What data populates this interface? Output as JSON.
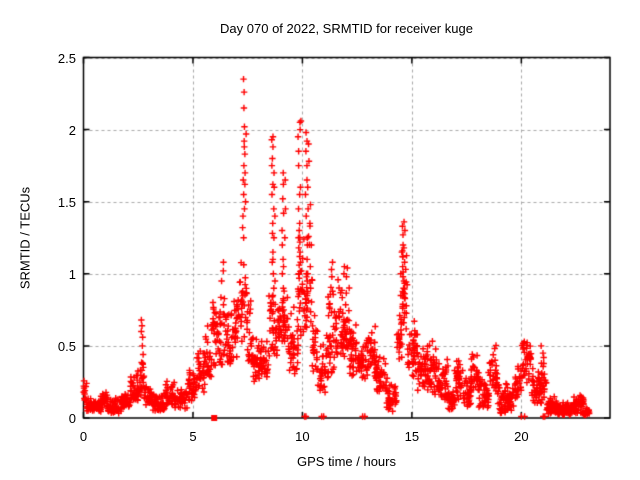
{
  "title": "Day 070 of 2022, SRMTID for receiver kuge",
  "axes": {
    "xlabel": "GPS time / hours",
    "ylabel": "SRMTID / TECUs",
    "xticks": [
      {
        "label": "0",
        "value": 0
      },
      {
        "label": "5",
        "value": 5
      },
      {
        "label": "10",
        "value": 10
      },
      {
        "label": "15",
        "value": 15
      },
      {
        "label": "20",
        "value": 20
      }
    ],
    "yticks": [
      {
        "label": "0",
        "value": 0
      },
      {
        "label": "0.5",
        "value": 0.5
      },
      {
        "label": "1",
        "value": 1
      },
      {
        "label": "1.5",
        "value": 1.5
      },
      {
        "label": "2",
        "value": 2
      },
      {
        "label": "2.5",
        "value": 2.5
      }
    ]
  },
  "colors": {
    "marker": "#ff0000",
    "grid": "#a8a8a8",
    "border": "#000000",
    "background": "#ffffff"
  },
  "chart_data": {
    "type": "scatter",
    "title": "Day 070 of 2022, SRMTID for receiver kuge",
    "xlabel": "GPS time / hours",
    "ylabel": "SRMTID / TECUs",
    "xlim": [
      0,
      24.05
    ],
    "ylim": [
      0,
      2.5
    ],
    "grid": true,
    "marker": "plus",
    "marker_color": "#ff0000",
    "description": "Dense ~2000-point red '+' time series of SRMTID vs GPS time. envelope_segments rows are [hour_start, hour_end, value_min, value_max, n_points]; spike_columns are narrow vertical columns of individual readings; zero markers sit on the x-axis.",
    "envelope_segments": [
      [
        0.0,
        0.15,
        0.08,
        0.3,
        14
      ],
      [
        0.15,
        0.8,
        0.04,
        0.16,
        55
      ],
      [
        0.8,
        1.1,
        0.06,
        0.22,
        26
      ],
      [
        1.1,
        1.75,
        0.03,
        0.14,
        55
      ],
      [
        1.75,
        2.15,
        0.06,
        0.2,
        34
      ],
      [
        2.15,
        2.45,
        0.1,
        0.3,
        26
      ],
      [
        2.45,
        2.62,
        0.12,
        0.38,
        15
      ],
      [
        2.62,
        2.78,
        0.14,
        0.45,
        13
      ],
      [
        2.78,
        3.15,
        0.08,
        0.26,
        30
      ],
      [
        3.15,
        3.75,
        0.04,
        0.18,
        50
      ],
      [
        3.75,
        4.15,
        0.08,
        0.32,
        34
      ],
      [
        4.15,
        4.75,
        0.06,
        0.22,
        50
      ],
      [
        4.75,
        5.15,
        0.12,
        0.38,
        34
      ],
      [
        5.15,
        5.55,
        0.18,
        0.5,
        34
      ],
      [
        5.55,
        5.85,
        0.25,
        0.65,
        26
      ],
      [
        5.85,
        6.1,
        0.3,
        0.95,
        24
      ],
      [
        6.1,
        6.45,
        0.35,
        0.9,
        30
      ],
      [
        6.45,
        6.85,
        0.35,
        0.78,
        34
      ],
      [
        6.85,
        7.05,
        0.4,
        1.0,
        18
      ],
      [
        7.05,
        7.25,
        0.5,
        1.2,
        16
      ],
      [
        7.25,
        7.45,
        0.55,
        1.3,
        14
      ],
      [
        7.45,
        7.75,
        0.3,
        0.85,
        26
      ],
      [
        7.75,
        8.45,
        0.25,
        0.62,
        60
      ],
      [
        8.45,
        8.85,
        0.4,
        0.9,
        32
      ],
      [
        8.85,
        9.35,
        0.45,
        0.95,
        40
      ],
      [
        9.35,
        9.8,
        0.3,
        0.85,
        38
      ],
      [
        9.8,
        10.45,
        0.55,
        1.35,
        52
      ],
      [
        10.45,
        10.7,
        0.25,
        0.8,
        22
      ],
      [
        10.7,
        11.05,
        0.15,
        0.55,
        30
      ],
      [
        11.05,
        11.5,
        0.25,
        0.95,
        40
      ],
      [
        11.5,
        12.15,
        0.35,
        1.0,
        60
      ],
      [
        12.15,
        12.55,
        0.25,
        0.75,
        36
      ],
      [
        12.55,
        13.0,
        0.25,
        0.6,
        40
      ],
      [
        13.0,
        13.35,
        0.28,
        0.7,
        30
      ],
      [
        13.35,
        13.8,
        0.15,
        0.45,
        40
      ],
      [
        13.8,
        14.3,
        0.04,
        0.28,
        44
      ],
      [
        14.3,
        14.55,
        0.35,
        1.0,
        22
      ],
      [
        14.55,
        14.8,
        0.55,
        1.36,
        24
      ],
      [
        14.8,
        15.25,
        0.28,
        0.7,
        40
      ],
      [
        15.25,
        15.75,
        0.18,
        0.55,
        44
      ],
      [
        15.75,
        16.15,
        0.15,
        0.55,
        36
      ],
      [
        16.15,
        16.65,
        0.1,
        0.42,
        44
      ],
      [
        16.65,
        16.95,
        0.05,
        0.2,
        26
      ],
      [
        16.95,
        17.35,
        0.12,
        0.45,
        36
      ],
      [
        17.35,
        17.7,
        0.07,
        0.3,
        30
      ],
      [
        17.7,
        18.05,
        0.15,
        0.5,
        32
      ],
      [
        18.05,
        18.5,
        0.06,
        0.28,
        40
      ],
      [
        18.5,
        18.9,
        0.12,
        0.58,
        36
      ],
      [
        18.9,
        19.4,
        0.02,
        0.28,
        44
      ],
      [
        19.4,
        19.7,
        0.04,
        0.24,
        26
      ],
      [
        19.7,
        20.0,
        0.08,
        0.38,
        26
      ],
      [
        20.0,
        20.45,
        0.22,
        0.62,
        40
      ],
      [
        20.45,
        20.85,
        0.08,
        0.4,
        34
      ],
      [
        20.85,
        21.15,
        0.05,
        0.45,
        26
      ],
      [
        21.15,
        21.65,
        0.02,
        0.16,
        44
      ],
      [
        21.65,
        22.25,
        0.02,
        0.12,
        55
      ],
      [
        22.25,
        22.85,
        0.03,
        0.17,
        55
      ],
      [
        22.85,
        23.1,
        0.02,
        0.09,
        24
      ]
    ],
    "spike_columns": [
      {
        "h": 2.68,
        "values": [
          0.33,
          0.38,
          0.44,
          0.5,
          0.56,
          0.6,
          0.64,
          0.68
        ]
      },
      {
        "h": 6.35,
        "values": [
          0.95,
          1.02,
          1.08
        ]
      },
      {
        "h": 7.28,
        "values": [
          1.25,
          1.32,
          1.4
        ]
      },
      {
        "h": 7.33,
        "values": [
          1.45,
          1.55,
          1.65,
          1.75,
          1.83,
          1.92,
          2.02,
          2.15,
          2.26,
          2.35
        ]
      },
      {
        "h": 7.38,
        "values": [
          1.5,
          1.62,
          1.7,
          1.88,
          1.97
        ]
      },
      {
        "h": 8.65,
        "values": [
          0.8,
          0.9,
          1.0,
          1.08,
          1.15,
          1.28,
          1.35,
          1.45,
          1.55,
          1.62,
          1.75,
          1.8,
          1.88,
          1.93
        ]
      },
      {
        "h": 8.7,
        "values": [
          0.85,
          0.95,
          1.1,
          1.25,
          1.4,
          1.6,
          1.7,
          1.95
        ]
      },
      {
        "h": 9.12,
        "values": [
          0.7,
          0.8,
          0.9,
          1.0,
          1.1,
          1.2,
          1.3,
          1.42,
          1.52,
          1.62,
          1.7
        ]
      },
      {
        "h": 9.18,
        "values": [
          0.75,
          0.88,
          1.05,
          1.25,
          1.45,
          1.65
        ]
      },
      {
        "h": 9.85,
        "values": [
          1.0,
          1.06,
          1.12,
          1.18,
          1.25,
          1.35,
          1.45,
          1.55,
          1.75,
          1.85,
          1.95,
          2.05
        ]
      },
      {
        "h": 9.9,
        "values": [
          1.02,
          1.08,
          1.15,
          1.22,
          1.3,
          1.6,
          2.0,
          2.06
        ]
      },
      {
        "h": 10.18,
        "values": [
          0.8,
          0.95,
          1.1,
          1.25,
          1.4,
          1.55,
          1.65,
          1.75,
          1.85,
          1.92,
          1.98
        ]
      },
      {
        "h": 10.25,
        "values": [
          0.85,
          1.0,
          1.2,
          1.45,
          1.6,
          1.78,
          1.9
        ]
      },
      {
        "h": 10.38,
        "values": [
          0.9,
          1.05,
          1.2,
          1.35,
          1.48
        ]
      },
      {
        "h": 11.35,
        "values": [
          0.98,
          1.03,
          1.08
        ]
      },
      {
        "h": 11.88,
        "values": [
          1.0,
          1.05
        ]
      },
      {
        "h": 12.02,
        "values": [
          0.98,
          1.04
        ]
      },
      {
        "h": 14.52,
        "values": [
          0.85,
          1.0,
          1.15
        ]
      },
      {
        "h": 14.6,
        "values": [
          0.9,
          0.98,
          1.05,
          1.12,
          1.2,
          1.27,
          1.33,
          1.36
        ]
      },
      {
        "h": 14.68,
        "values": [
          0.95,
          1.08,
          1.18,
          1.3
        ]
      },
      {
        "h": 20.95,
        "values": [
          0.22,
          0.3,
          0.38,
          0.45,
          0.5
        ]
      }
    ],
    "zero_plus_hours": [
      10.1,
      10.16,
      10.88,
      10.97,
      12.75,
      12.85,
      20.0,
      20.15,
      21.0,
      21.07
    ],
    "zero_square_hours": [
      5.97
    ],
    "notable_peaks": [
      {
        "h": 2.7,
        "max": 0.68
      },
      {
        "h": 7.3,
        "max": 2.35
      },
      {
        "h": 8.65,
        "max": 1.95
      },
      {
        "h": 10.2,
        "max": 2.05
      },
      {
        "h": 11.9,
        "max": 1.08
      },
      {
        "h": 14.6,
        "max": 1.36
      }
    ]
  }
}
